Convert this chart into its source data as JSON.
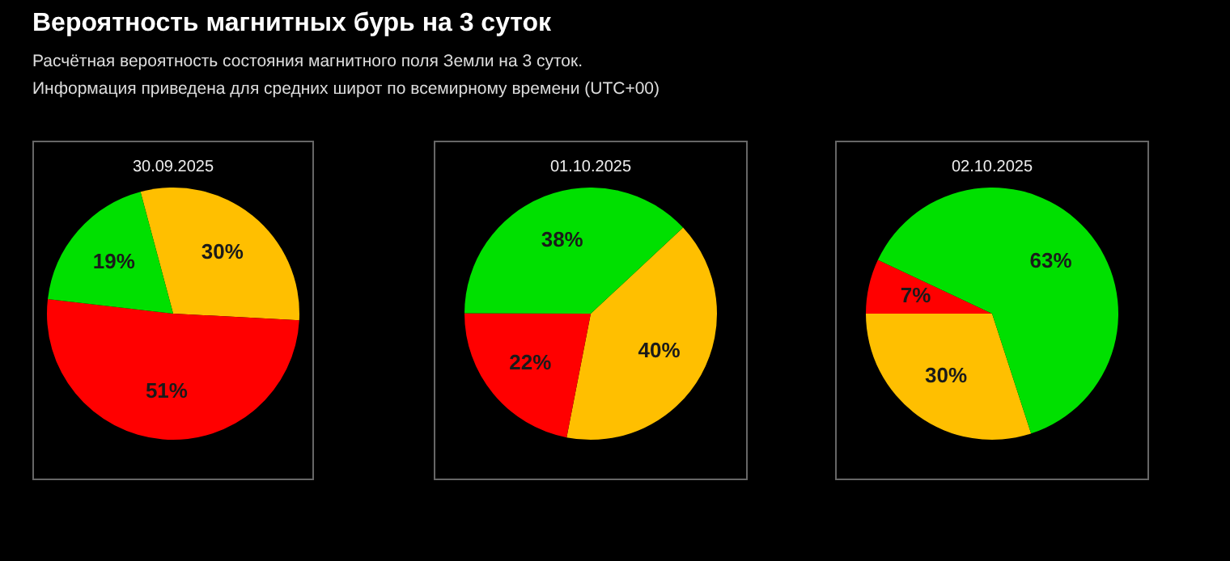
{
  "chart_data": [
    {
      "type": "pie",
      "title": "30.09.2025",
      "annotations": [
        "Вероятность магнитных бурь на 3 суток",
        "Расчётная вероятность состояния магнитного поля Земли на 3 суток.",
        "Информация приведена для средних широт по всемирному времени (UTC+00)"
      ],
      "categories": [
        null,
        null,
        null
      ],
      "values": [
        30,
        51,
        19
      ],
      "colors": [
        "#ffbf00",
        "#ff0000",
        "#00e000"
      ],
      "value_labels": [
        "30%",
        "51%",
        "19%"
      ]
    },
    {
      "type": "pie",
      "title": "01.10.2025",
      "categories": [
        null,
        null,
        null
      ],
      "values": [
        40,
        22,
        38
      ],
      "colors": [
        "#ffbf00",
        "#ff0000",
        "#00e000"
      ],
      "value_labels": [
        "40%",
        "22%",
        "38%"
      ]
    },
    {
      "type": "pie",
      "title": "02.10.2025",
      "categories": [
        null,
        null,
        null
      ],
      "values": [
        30,
        7,
        63
      ],
      "colors": [
        "#ffbf00",
        "#ff0000",
        "#00e000"
      ],
      "value_labels": [
        "30%",
        "7%",
        "63%"
      ]
    }
  ]
}
